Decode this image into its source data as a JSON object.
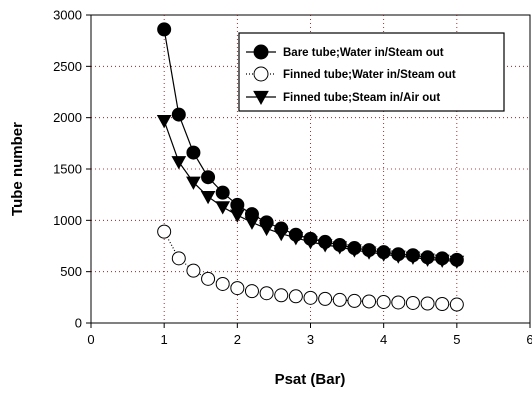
{
  "chart_data": {
    "type": "line",
    "title": "",
    "xlabel": "Psat (Bar)",
    "ylabel": "Tube number",
    "xlim": [
      0,
      6
    ],
    "ylim": [
      0,
      3000
    ],
    "xticks": [
      0,
      1,
      2,
      3,
      4,
      5,
      6
    ],
    "yticks": [
      0,
      500,
      1000,
      1500,
      2000,
      2500,
      3000
    ],
    "grid": true,
    "legend_position": "top-right",
    "x": [
      1.0,
      1.2,
      1.4,
      1.6,
      1.8,
      2.0,
      2.2,
      2.4,
      2.6,
      2.8,
      3.0,
      3.2,
      3.4,
      3.6,
      3.8,
      4.0,
      4.2,
      4.4,
      4.6,
      4.8,
      5.0
    ],
    "series": [
      {
        "name": "Bare tube;Water in/Steam out",
        "marker": "filled-circle",
        "line": "solid",
        "color": "#000000",
        "values": [
          2860,
          2030,
          1660,
          1420,
          1270,
          1150,
          1060,
          980,
          920,
          860,
          820,
          790,
          760,
          730,
          710,
          690,
          670,
          660,
          640,
          630,
          615
        ]
      },
      {
        "name": "Finned tube;Water in/Steam out",
        "marker": "open-circle",
        "line": "dotted",
        "color": "#000000",
        "values": [
          890,
          630,
          510,
          430,
          380,
          340,
          310,
          290,
          270,
          260,
          245,
          235,
          225,
          215,
          210,
          205,
          200,
          195,
          190,
          185,
          180
        ]
      },
      {
        "name": "Finned tube;Steam in/Air out",
        "marker": "filled-triangle-down",
        "line": "solid",
        "color": "#000000",
        "values": [
          1970,
          1570,
          1370,
          1230,
          1130,
          1050,
          980,
          920,
          870,
          830,
          790,
          760,
          740,
          710,
          690,
          670,
          650,
          640,
          620,
          610,
          600
        ]
      }
    ]
  }
}
